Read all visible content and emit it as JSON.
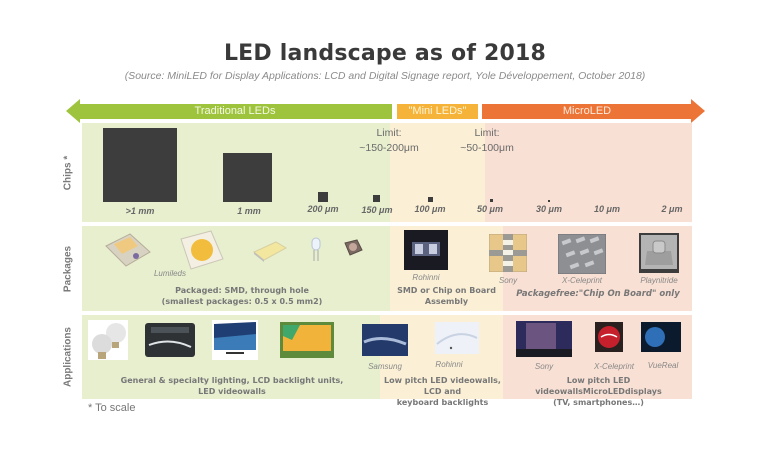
{
  "title": "LED landscape as of 2018",
  "subtitle": "(Source: MiniLED for Display Applications: LCD and Digital Signage report, Yole Développement, October 2018)",
  "bands": {
    "traditional": "Traditional LEDs",
    "mini": "\"Mini LEDs\"",
    "micro": "MicroLED"
  },
  "colors": {
    "traditional": "#9ec43d",
    "mini": "#f5b33a",
    "micro": "#ed7437"
  },
  "rows": {
    "chips": "Chips *",
    "packages": "Packages",
    "applications": "Applications"
  },
  "chips": {
    "sizes": [
      ">1 mm",
      "1 mm",
      "200 μm",
      "150 μm",
      "100 μm",
      "50 μm",
      "30 μm",
      "10 μm",
      "2 μm"
    ],
    "limit_mini": {
      "line1": "Limit:",
      "line2": "~150-200μm"
    },
    "limit_micro": {
      "line1": "Limit:",
      "line2": "~50-100μm"
    }
  },
  "packages": {
    "traditional_brand": "Lumileds",
    "traditional_caption_1": "Packaged: SMD, through hole",
    "traditional_caption_2": "(smallest packages: 0.5 x 0.5 mm2)",
    "mini_brand": "Rohinni",
    "mini_caption_1": "SMD or Chip on Board",
    "mini_caption_2": "Assembly",
    "micro_brands": [
      "Sony",
      "X-Celeprint",
      "Playnitride"
    ],
    "micro_caption": "Packagefree:\"Chip On Board\" only"
  },
  "applications": {
    "traditional_caption_1": "General & specialty lighting, LCD backlight units,",
    "traditional_caption_2": "LED videowalls",
    "mini_brands": [
      "Samsung",
      "Rohinni"
    ],
    "mini_caption_1": "Low pitch LED videowalls, LCD and",
    "mini_caption_2": "keyboard  backlights",
    "micro_brands": [
      "Sony",
      "X-Celeprint",
      "VueReal"
    ],
    "micro_caption_1a": "Low pitch LED videowalls",
    "micro_caption_1b": "MicroLEDdisplays",
    "micro_caption_2": "(TV, smartphones…)"
  },
  "footnote": "* To scale"
}
